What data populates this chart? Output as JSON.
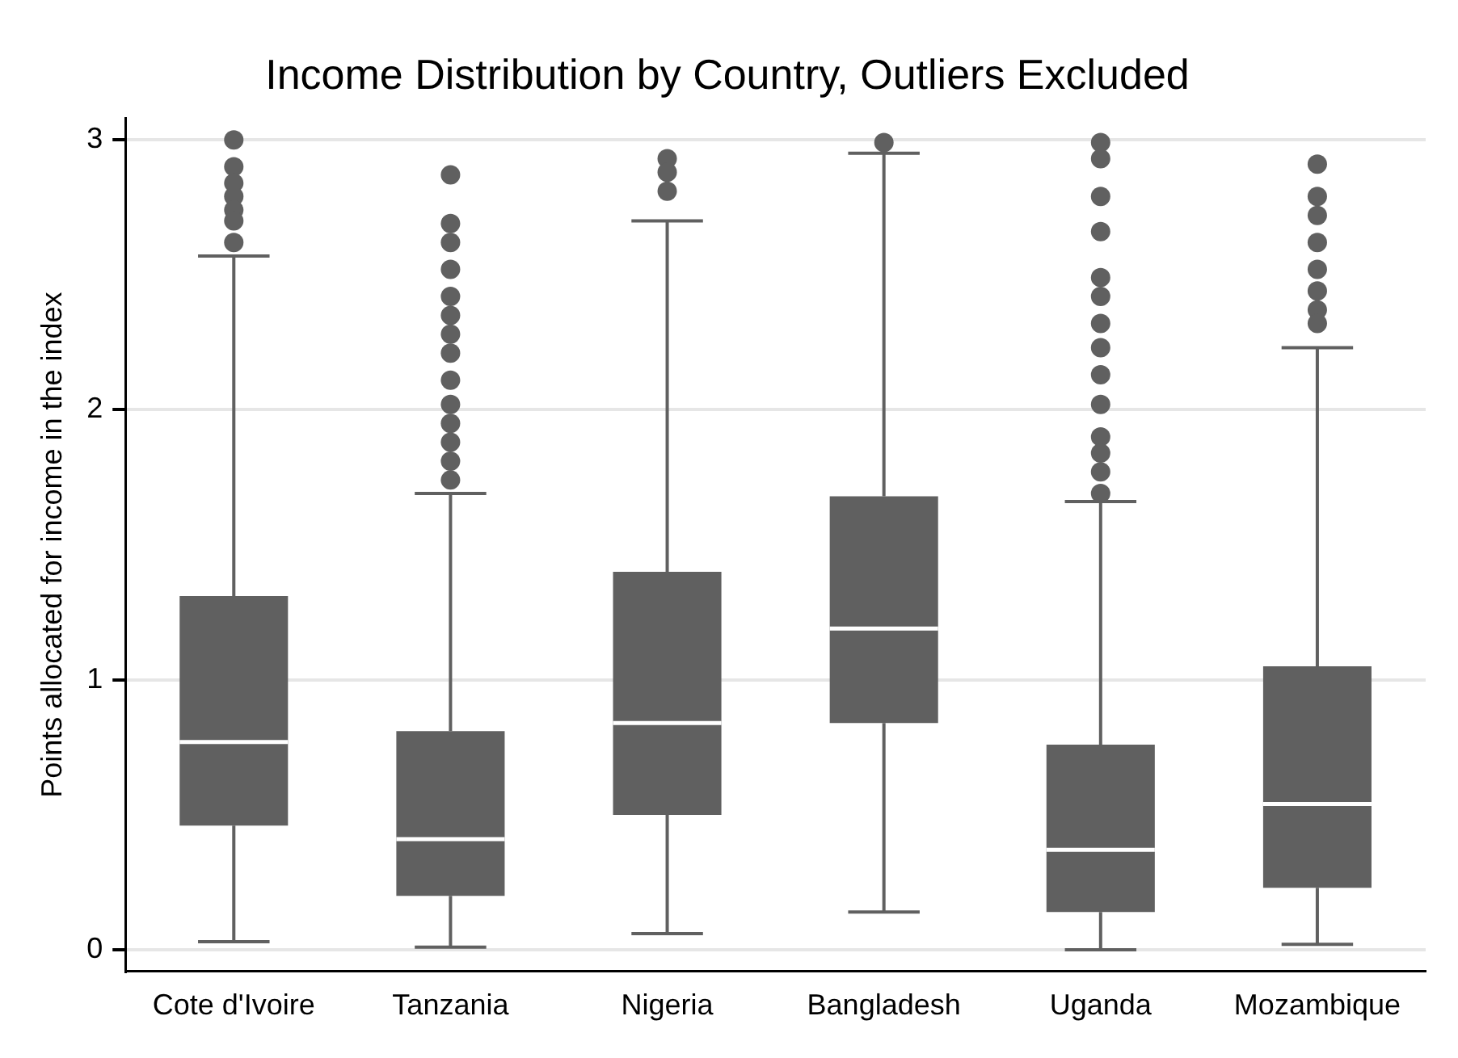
{
  "chart_data": {
    "type": "box",
    "title": "Income Distribution by Country, Outliers Excluded",
    "ylabel": "Points allocated for income in the index",
    "categories": [
      "Cote d'Ivoire",
      "Tanzania",
      "Nigeria",
      "Bangladesh",
      "Uganda",
      "Mozambique"
    ],
    "color": "#606060",
    "ylim": [
      -0.08,
      3.08
    ],
    "yticks": [
      0,
      1,
      2,
      3
    ],
    "grid": "y",
    "boxes": [
      {
        "low": 0.03,
        "q1": 0.46,
        "median": 0.77,
        "q3": 1.31,
        "high": 2.57,
        "outliers": [
          3.0,
          2.9,
          2.84,
          2.79,
          2.74,
          2.7,
          2.62
        ]
      },
      {
        "low": 0.01,
        "q1": 0.2,
        "median": 0.41,
        "q3": 0.81,
        "high": 1.69,
        "outliers": [
          2.87,
          2.69,
          2.62,
          2.52,
          2.42,
          2.35,
          2.28,
          2.21,
          2.11,
          2.02,
          1.95,
          1.88,
          1.81,
          1.74
        ]
      },
      {
        "low": 0.06,
        "q1": 0.5,
        "median": 0.84,
        "q3": 1.4,
        "high": 2.7,
        "outliers": [
          2.93,
          2.88,
          2.81
        ]
      },
      {
        "low": 0.14,
        "q1": 0.84,
        "median": 1.19,
        "q3": 1.68,
        "high": 2.95,
        "outliers": [
          2.99
        ]
      },
      {
        "low": 0.0,
        "q1": 0.14,
        "median": 0.37,
        "q3": 0.76,
        "high": 1.66,
        "outliers": [
          2.99,
          2.93,
          2.79,
          2.66,
          2.49,
          2.42,
          2.32,
          2.23,
          2.13,
          2.02,
          1.9,
          1.84,
          1.77,
          1.69
        ]
      },
      {
        "low": 0.02,
        "q1": 0.23,
        "median": 0.54,
        "q3": 1.05,
        "high": 2.23,
        "outliers": [
          2.91,
          2.79,
          2.72,
          2.62,
          2.52,
          2.44,
          2.37,
          2.32
        ]
      }
    ]
  }
}
